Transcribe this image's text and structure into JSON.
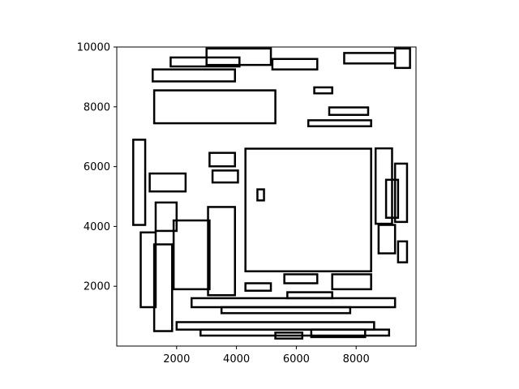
{
  "chart_data": {
    "type": "rectangles",
    "title": "",
    "xlabel": "",
    "ylabel": "",
    "xlim": [
      0,
      10000
    ],
    "ylim": [
      0,
      10000
    ],
    "x_ticks": [
      2000,
      4000,
      6000,
      8000
    ],
    "y_ticks": [
      2000,
      4000,
      6000,
      8000,
      10000
    ],
    "x_tick_labels": [
      "2000",
      "4000",
      "6000",
      "8000"
    ],
    "y_tick_labels": [
      "2000",
      "4000",
      "6000",
      "8000",
      "10000"
    ],
    "grid": false,
    "legend": "none",
    "stroke_color": "#000000",
    "fill_color": "#ffffff",
    "rects": [
      [
        4300,
        2500,
        8500,
        6600
      ],
      [
        1250,
        7450,
        5300,
        8550
      ],
      [
        1900,
        1900,
        3100,
        4200
      ],
      [
        3050,
        1700,
        3950,
        4650
      ],
      [
        2500,
        1300,
        9300,
        1600
      ],
      [
        2000,
        550,
        8600,
        800
      ],
      [
        2800,
        350,
        9100,
        550
      ],
      [
        1200,
        8850,
        3950,
        9250
      ],
      [
        1800,
        9350,
        4100,
        9650
      ],
      [
        3000,
        9400,
        5150,
        9950
      ],
      [
        5200,
        9250,
        6700,
        9600
      ],
      [
        7600,
        9450,
        9300,
        9800
      ],
      [
        9300,
        9300,
        9800,
        9950
      ],
      [
        550,
        4050,
        950,
        6900
      ],
      [
        800,
        1300,
        1300,
        3800
      ],
      [
        1250,
        500,
        1850,
        3400
      ],
      [
        4700,
        4870,
        4920,
        5240
      ],
      [
        3200,
        5470,
        4050,
        5870
      ],
      [
        1100,
        5170,
        2300,
        5770
      ],
      [
        1300,
        3850,
        2000,
        4800
      ],
      [
        3100,
        6010,
        3950,
        6460
      ],
      [
        6400,
        7350,
        8500,
        7550
      ],
      [
        7100,
        7730,
        8400,
        7980
      ],
      [
        6600,
        8450,
        7200,
        8650
      ],
      [
        8650,
        4090,
        9200,
        6610
      ],
      [
        9000,
        4290,
        9400,
        5560
      ],
      [
        8750,
        3100,
        9300,
        4050
      ],
      [
        9400,
        2800,
        9700,
        3500
      ],
      [
        7200,
        1900,
        8500,
        2400
      ],
      [
        5600,
        2100,
        6700,
        2400
      ],
      [
        4300,
        1850,
        5150,
        2100
      ],
      [
        5700,
        1600,
        7200,
        1800
      ],
      [
        3500,
        1100,
        7800,
        1300
      ],
      [
        5300,
        250,
        6200,
        450
      ],
      [
        6500,
        300,
        8300,
        550
      ],
      [
        9300,
        4150,
        9700,
        6100
      ]
    ]
  }
}
